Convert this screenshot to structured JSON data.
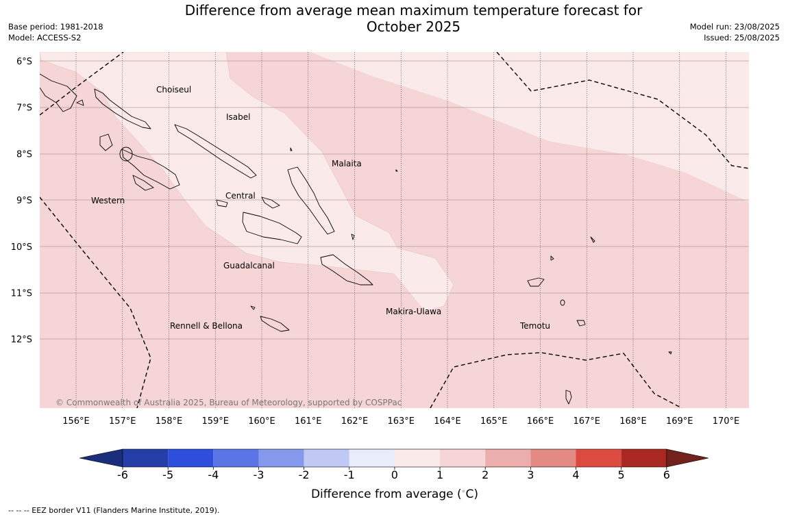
{
  "title_line1": "Difference from average mean maximum temperature forecast for",
  "title_line2": "October 2025",
  "meta_left": {
    "base_period": "Base period: 1981-2018",
    "model": "Model: ACCESS-S2"
  },
  "meta_right": {
    "model_run": "Model run: 23/08/2025",
    "issued": "Issued: 25/08/2025"
  },
  "copyright": "© Commonwealth of Australia 2025, Bureau of Meteorology, supported by COSPPac",
  "lon_labels": [
    "156°E",
    "157°E",
    "158°E",
    "159°E",
    "160°E",
    "161°E",
    "162°E",
    "163°E",
    "164°E",
    "165°E",
    "166°E",
    "167°E",
    "168°E",
    "169°E",
    "170°E"
  ],
  "lat_labels": [
    "6°S",
    "7°S",
    "8°S",
    "9°S",
    "10°S",
    "11°S",
    "12°S"
  ],
  "provinces": [
    "Choiseul",
    "Isabel",
    "Malaita",
    "Western",
    "Central",
    "Guadalcanal",
    "Makira-Ulawa",
    "Rennell & Bellona",
    "Temotu"
  ],
  "colorbar": {
    "ticks": [
      "-6",
      "-5",
      "-4",
      "-3",
      "-2",
      "-1",
      "0",
      "1",
      "2",
      "3",
      "4",
      "5",
      "6"
    ],
    "colors": [
      "#1a2e7c",
      "#263fa8",
      "#2e4edc",
      "#5a75e6",
      "#8599ec",
      "#c0c9f4",
      "#e8ecfb",
      "#fbeaea",
      "#f5d5d5",
      "#ecaeac",
      "#e48a84",
      "#dc4a40",
      "#aa2822",
      "#72211b"
    ],
    "label": "Difference from average ($^\\circ$C)"
  },
  "footnote": "--  --  -- EEZ border V11 (Flanders Marine Institute, 2019).",
  "regions": {
    "warm_1_to_2": "#f5d5d5",
    "warm_0_to_1": "#fbeaea"
  }
}
